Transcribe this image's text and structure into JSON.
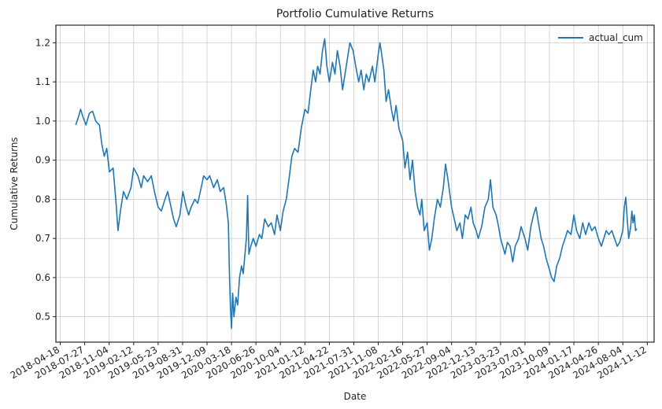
{
  "chart_data": {
    "type": "line",
    "title": "Portfolio Cumulative Returns",
    "xlabel": "Date",
    "ylabel": "Cumulative Returns",
    "ylim": [
      0.435,
      1.245
    ],
    "xlim": [
      "2018-03-31",
      "2024-12-10"
    ],
    "grid": true,
    "legend_position": "top-right",
    "yticks": [
      0.5,
      0.6,
      0.7,
      0.8,
      0.9,
      1.0,
      1.1,
      1.2
    ],
    "xticks": [
      "2018-04-18",
      "2018-07-27",
      "2018-11-04",
      "2019-02-12",
      "2019-05-23",
      "2019-08-31",
      "2019-12-09",
      "2020-03-18",
      "2020-06-26",
      "2020-10-04",
      "2021-01-12",
      "2021-04-22",
      "2021-07-31",
      "2021-11-08",
      "2022-02-16",
      "2022-05-27",
      "2022-09-04",
      "2022-12-13",
      "2023-03-23",
      "2023-07-01",
      "2023-10-09",
      "2024-01-17",
      "2024-04-26",
      "2024-08-04",
      "2024-11-12"
    ],
    "series": [
      {
        "name": "actual_cum",
        "color": "#1f77b4",
        "points": [
          [
            "2018-06-20",
            0.99
          ],
          [
            "2018-07-01",
            1.01
          ],
          [
            "2018-07-10",
            1.03
          ],
          [
            "2018-07-20",
            1.01
          ],
          [
            "2018-08-01",
            0.99
          ],
          [
            "2018-08-15",
            1.02
          ],
          [
            "2018-08-28",
            1.025
          ],
          [
            "2018-09-10",
            1.0
          ],
          [
            "2018-09-25",
            0.99
          ],
          [
            "2018-10-05",
            0.94
          ],
          [
            "2018-10-15",
            0.91
          ],
          [
            "2018-10-25",
            0.93
          ],
          [
            "2018-11-05",
            0.87
          ],
          [
            "2018-11-20",
            0.88
          ],
          [
            "2018-12-01",
            0.8
          ],
          [
            "2018-12-10",
            0.72
          ],
          [
            "2018-12-20",
            0.77
          ],
          [
            "2019-01-01",
            0.82
          ],
          [
            "2019-01-15",
            0.8
          ],
          [
            "2019-02-01",
            0.83
          ],
          [
            "2019-02-12",
            0.88
          ],
          [
            "2019-03-01",
            0.86
          ],
          [
            "2019-03-15",
            0.83
          ],
          [
            "2019-03-25",
            0.86
          ],
          [
            "2019-04-10",
            0.845
          ],
          [
            "2019-04-25",
            0.86
          ],
          [
            "2019-05-08",
            0.82
          ],
          [
            "2019-05-23",
            0.78
          ],
          [
            "2019-06-05",
            0.77
          ],
          [
            "2019-06-20",
            0.8
          ],
          [
            "2019-07-01",
            0.82
          ],
          [
            "2019-07-15",
            0.78
          ],
          [
            "2019-07-25",
            0.75
          ],
          [
            "2019-08-05",
            0.73
          ],
          [
            "2019-08-20",
            0.76
          ],
          [
            "2019-09-01",
            0.82
          ],
          [
            "2019-09-15",
            0.78
          ],
          [
            "2019-09-25",
            0.76
          ],
          [
            "2019-10-05",
            0.78
          ],
          [
            "2019-10-20",
            0.8
          ],
          [
            "2019-11-01",
            0.79
          ],
          [
            "2019-11-15",
            0.83
          ],
          [
            "2019-11-25",
            0.86
          ],
          [
            "2019-12-09",
            0.85
          ],
          [
            "2019-12-20",
            0.86
          ],
          [
            "2020-01-05",
            0.83
          ],
          [
            "2020-01-20",
            0.85
          ],
          [
            "2020-02-01",
            0.82
          ],
          [
            "2020-02-15",
            0.83
          ],
          [
            "2020-02-25",
            0.79
          ],
          [
            "2020-03-05",
            0.74
          ],
          [
            "2020-03-10",
            0.6
          ],
          [
            "2020-03-14",
            0.52
          ],
          [
            "2020-03-18",
            0.47
          ],
          [
            "2020-03-23",
            0.56
          ],
          [
            "2020-03-28",
            0.5
          ],
          [
            "2020-04-05",
            0.55
          ],
          [
            "2020-04-12",
            0.53
          ],
          [
            "2020-04-20",
            0.6
          ],
          [
            "2020-04-28",
            0.63
          ],
          [
            "2020-05-05",
            0.61
          ],
          [
            "2020-05-12",
            0.66
          ],
          [
            "2020-05-18",
            0.7
          ],
          [
            "2020-05-23",
            0.81
          ],
          [
            "2020-05-28",
            0.66
          ],
          [
            "2020-06-05",
            0.68
          ],
          [
            "2020-06-15",
            0.7
          ],
          [
            "2020-06-26",
            0.68
          ],
          [
            "2020-07-10",
            0.71
          ],
          [
            "2020-07-20",
            0.7
          ],
          [
            "2020-08-01",
            0.75
          ],
          [
            "2020-08-15",
            0.73
          ],
          [
            "2020-08-28",
            0.74
          ],
          [
            "2020-09-10",
            0.71
          ],
          [
            "2020-09-20",
            0.76
          ],
          [
            "2020-10-04",
            0.72
          ],
          [
            "2020-10-15",
            0.77
          ],
          [
            "2020-10-28",
            0.8
          ],
          [
            "2020-11-10",
            0.86
          ],
          [
            "2020-11-20",
            0.91
          ],
          [
            "2020-12-01",
            0.93
          ],
          [
            "2020-12-15",
            0.92
          ],
          [
            "2020-12-28",
            0.98
          ],
          [
            "2021-01-12",
            1.03
          ],
          [
            "2021-01-25",
            1.02
          ],
          [
            "2021-02-05",
            1.08
          ],
          [
            "2021-02-15",
            1.13
          ],
          [
            "2021-02-25",
            1.1
          ],
          [
            "2021-03-05",
            1.14
          ],
          [
            "2021-03-15",
            1.12
          ],
          [
            "2021-03-25",
            1.18
          ],
          [
            "2021-04-03",
            1.21
          ],
          [
            "2021-04-12",
            1.14
          ],
          [
            "2021-04-22",
            1.1
          ],
          [
            "2021-05-05",
            1.15
          ],
          [
            "2021-05-15",
            1.12
          ],
          [
            "2021-05-25",
            1.18
          ],
          [
            "2021-06-05",
            1.14
          ],
          [
            "2021-06-15",
            1.08
          ],
          [
            "2021-06-25",
            1.12
          ],
          [
            "2021-07-05",
            1.16
          ],
          [
            "2021-07-15",
            1.2
          ],
          [
            "2021-07-28",
            1.18
          ],
          [
            "2021-08-08",
            1.14
          ],
          [
            "2021-08-20",
            1.1
          ],
          [
            "2021-08-30",
            1.13
          ],
          [
            "2021-09-10",
            1.08
          ],
          [
            "2021-09-20",
            1.12
          ],
          [
            "2021-10-01",
            1.1
          ],
          [
            "2021-10-15",
            1.14
          ],
          [
            "2021-10-25",
            1.1
          ],
          [
            "2021-11-08",
            1.17
          ],
          [
            "2021-11-15",
            1.2
          ],
          [
            "2021-11-22",
            1.17
          ],
          [
            "2021-12-01",
            1.13
          ],
          [
            "2021-12-10",
            1.05
          ],
          [
            "2021-12-20",
            1.08
          ],
          [
            "2022-01-01",
            1.03
          ],
          [
            "2022-01-10",
            1.0
          ],
          [
            "2022-01-20",
            1.04
          ],
          [
            "2022-02-01",
            0.98
          ],
          [
            "2022-02-16",
            0.95
          ],
          [
            "2022-02-25",
            0.88
          ],
          [
            "2022-03-08",
            0.92
          ],
          [
            "2022-03-18",
            0.85
          ],
          [
            "2022-03-28",
            0.9
          ],
          [
            "2022-04-08",
            0.82
          ],
          [
            "2022-04-18",
            0.78
          ],
          [
            "2022-04-28",
            0.76
          ],
          [
            "2022-05-05",
            0.8
          ],
          [
            "2022-05-15",
            0.72
          ],
          [
            "2022-05-27",
            0.74
          ],
          [
            "2022-06-05",
            0.67
          ],
          [
            "2022-06-15",
            0.7
          ],
          [
            "2022-06-25",
            0.75
          ],
          [
            "2022-07-08",
            0.8
          ],
          [
            "2022-07-20",
            0.78
          ],
          [
            "2022-08-01",
            0.83
          ],
          [
            "2022-08-10",
            0.89
          ],
          [
            "2022-08-20",
            0.85
          ],
          [
            "2022-09-04",
            0.78
          ],
          [
            "2022-09-15",
            0.75
          ],
          [
            "2022-09-25",
            0.72
          ],
          [
            "2022-10-08",
            0.74
          ],
          [
            "2022-10-18",
            0.7
          ],
          [
            "2022-10-30",
            0.76
          ],
          [
            "2022-11-10",
            0.75
          ],
          [
            "2022-11-22",
            0.78
          ],
          [
            "2022-12-01",
            0.74
          ],
          [
            "2022-12-13",
            0.72
          ],
          [
            "2022-12-22",
            0.7
          ],
          [
            "2023-01-05",
            0.73
          ],
          [
            "2023-01-18",
            0.78
          ],
          [
            "2023-02-01",
            0.8
          ],
          [
            "2023-02-10",
            0.85
          ],
          [
            "2023-02-20",
            0.78
          ],
          [
            "2023-03-05",
            0.76
          ],
          [
            "2023-03-15",
            0.73
          ],
          [
            "2023-03-23",
            0.7
          ],
          [
            "2023-04-01",
            0.68
          ],
          [
            "2023-04-10",
            0.66
          ],
          [
            "2023-04-20",
            0.69
          ],
          [
            "2023-05-01",
            0.68
          ],
          [
            "2023-05-12",
            0.64
          ],
          [
            "2023-05-22",
            0.68
          ],
          [
            "2023-06-05",
            0.7
          ],
          [
            "2023-06-15",
            0.73
          ],
          [
            "2023-07-01",
            0.7
          ],
          [
            "2023-07-12",
            0.67
          ],
          [
            "2023-07-25",
            0.73
          ],
          [
            "2023-08-05",
            0.76
          ],
          [
            "2023-08-15",
            0.78
          ],
          [
            "2023-08-25",
            0.74
          ],
          [
            "2023-09-05",
            0.7
          ],
          [
            "2023-09-15",
            0.68
          ],
          [
            "2023-09-25",
            0.65
          ],
          [
            "2023-10-09",
            0.62
          ],
          [
            "2023-10-18",
            0.6
          ],
          [
            "2023-10-28",
            0.59
          ],
          [
            "2023-11-08",
            0.63
          ],
          [
            "2023-11-20",
            0.65
          ],
          [
            "2023-12-01",
            0.68
          ],
          [
            "2023-12-12",
            0.7
          ],
          [
            "2023-12-22",
            0.72
          ],
          [
            "2024-01-05",
            0.71
          ],
          [
            "2024-01-17",
            0.76
          ],
          [
            "2024-01-28",
            0.72
          ],
          [
            "2024-02-10",
            0.7
          ],
          [
            "2024-02-22",
            0.74
          ],
          [
            "2024-03-05",
            0.71
          ],
          [
            "2024-03-18",
            0.74
          ],
          [
            "2024-03-30",
            0.72
          ],
          [
            "2024-04-12",
            0.73
          ],
          [
            "2024-04-26",
            0.7
          ],
          [
            "2024-05-08",
            0.68
          ],
          [
            "2024-05-18",
            0.7
          ],
          [
            "2024-05-28",
            0.72
          ],
          [
            "2024-06-08",
            0.71
          ],
          [
            "2024-06-20",
            0.72
          ],
          [
            "2024-07-01",
            0.7
          ],
          [
            "2024-07-12",
            0.68
          ],
          [
            "2024-07-22",
            0.69
          ],
          [
            "2024-08-04",
            0.72
          ],
          [
            "2024-08-10",
            0.78
          ],
          [
            "2024-08-16",
            0.805
          ],
          [
            "2024-08-22",
            0.75
          ],
          [
            "2024-08-28",
            0.7
          ],
          [
            "2024-09-05",
            0.73
          ],
          [
            "2024-09-10",
            0.77
          ],
          [
            "2024-09-15",
            0.74
          ],
          [
            "2024-09-20",
            0.76
          ],
          [
            "2024-09-25",
            0.72
          ],
          [
            "2024-09-30",
            0.725
          ]
        ]
      }
    ]
  }
}
